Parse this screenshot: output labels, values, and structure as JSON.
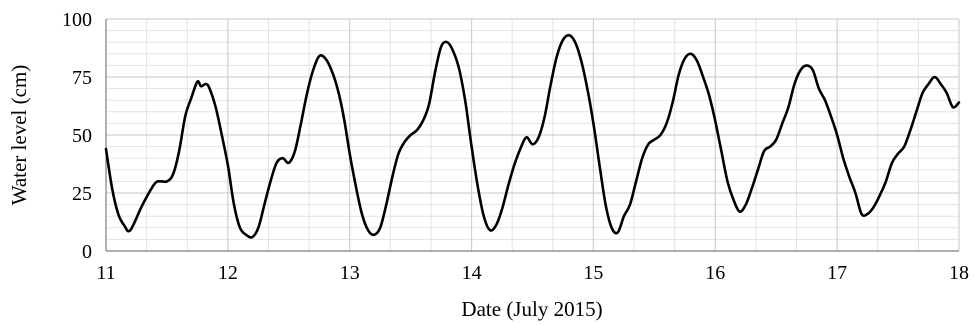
{
  "chart_data": {
    "type": "line",
    "title": "",
    "xlabel": "Date (July 2015)",
    "ylabel": "Water level (cm)",
    "xlim": [
      11,
      18
    ],
    "ylim": [
      0,
      100
    ],
    "x_ticks": [
      11,
      12,
      13,
      14,
      15,
      16,
      17,
      18
    ],
    "x_tick_labels": [
      "11",
      "12",
      "13",
      "14",
      "15",
      "16",
      "17",
      "18"
    ],
    "y_ticks": [
      0,
      25,
      50,
      75,
      100
    ],
    "y_tick_labels": [
      "0",
      "25",
      "50",
      "75",
      "100"
    ],
    "grid": true,
    "legend": "none",
    "colors": {
      "line": "#000000",
      "grid": "#d0d0d0",
      "axis": "#7f7f7f"
    },
    "series": [
      {
        "x": [
          11.0,
          11.05,
          11.1,
          11.15,
          11.2,
          11.3,
          11.4,
          11.45,
          11.5,
          11.55,
          11.6,
          11.65,
          11.7,
          11.75,
          11.78,
          11.82,
          11.85,
          11.9,
          11.95,
          12.0,
          12.05,
          12.1,
          12.15,
          12.2,
          12.25,
          12.3,
          12.35,
          12.4,
          12.45,
          12.5,
          12.55,
          12.6,
          12.65,
          12.7,
          12.75,
          12.8,
          12.85,
          12.9,
          12.95,
          13.0,
          13.05,
          13.1,
          13.15,
          13.2,
          13.25,
          13.3,
          13.35,
          13.4,
          13.45,
          13.5,
          13.55,
          13.6,
          13.65,
          13.7,
          13.75,
          13.8,
          13.85,
          13.9,
          13.95,
          14.0,
          14.05,
          14.1,
          14.15,
          14.2,
          14.25,
          14.3,
          14.35,
          14.4,
          14.45,
          14.5,
          14.55,
          14.6,
          14.65,
          14.7,
          14.75,
          14.8,
          14.85,
          14.9,
          14.95,
          15.0,
          15.05,
          15.1,
          15.15,
          15.2,
          15.25,
          15.3,
          15.35,
          15.4,
          15.45,
          15.5,
          15.55,
          15.6,
          15.65,
          15.7,
          15.75,
          15.8,
          15.85,
          15.9,
          15.95,
          16.0,
          16.05,
          16.1,
          16.15,
          16.2,
          16.25,
          16.3,
          16.35,
          16.4,
          16.45,
          16.5,
          16.55,
          16.6,
          16.65,
          16.7,
          16.75,
          16.8,
          16.85,
          16.9,
          16.95,
          17.0,
          17.05,
          17.1,
          17.15,
          17.2,
          17.25,
          17.3,
          17.35,
          17.4,
          17.45,
          17.5,
          17.55,
          17.6,
          17.65,
          17.7,
          17.75,
          17.8,
          17.85,
          17.9,
          17.95,
          18.0
        ],
        "y": [
          44,
          27,
          16,
          11,
          9,
          20,
          29,
          30,
          30,
          33,
          43,
          58,
          66,
          73,
          71,
          72,
          70,
          62,
          50,
          37,
          20,
          10,
          7,
          6,
          10,
          20,
          30,
          38,
          40,
          38,
          43,
          55,
          68,
          78,
          84,
          83,
          78,
          70,
          58,
          42,
          28,
          16,
          9,
          7,
          10,
          20,
          32,
          42,
          47,
          50,
          52,
          56,
          63,
          77,
          88,
          90,
          86,
          78,
          64,
          45,
          28,
          15,
          9,
          11,
          18,
          28,
          37,
          44,
          49,
          46,
          49,
          58,
          72,
          84,
          91,
          93,
          90,
          82,
          70,
          55,
          37,
          20,
          10,
          8,
          15,
          20,
          30,
          40,
          46,
          48,
          50,
          55,
          64,
          76,
          83,
          85,
          82,
          75,
          67,
          56,
          43,
          30,
          22,
          17,
          20,
          27,
          35,
          43,
          45,
          48,
          55,
          62,
          72,
          78,
          80,
          78,
          70,
          65,
          58,
          50,
          40,
          32,
          25,
          16,
          16,
          19,
          24,
          30,
          38,
          42,
          45,
          52,
          60,
          68,
          72,
          75,
          72,
          68,
          62,
          64
        ]
      }
    ]
  }
}
